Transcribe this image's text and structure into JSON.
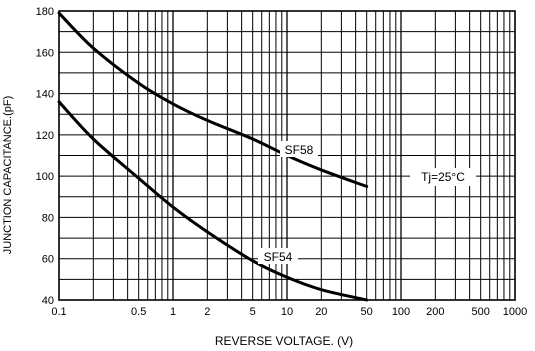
{
  "chart_data": {
    "type": "line",
    "xscale": "log",
    "xlim": [
      0.1,
      1000
    ],
    "ylim": [
      40,
      180
    ],
    "grid": true,
    "xlabel": "REVERSE VOLTAGE. (V)",
    "ylabel": "JUNCTION CAPACITANCE.(pF)",
    "x_ticks": [
      0.1,
      0.5,
      1,
      2,
      5,
      10,
      20,
      50,
      100,
      200,
      500,
      1000
    ],
    "x_tick_labels": [
      "0.1",
      "0.5",
      "1",
      "2",
      "5",
      "10",
      "20",
      "50",
      "100",
      "200",
      "500",
      "1000"
    ],
    "y_ticks": [
      40,
      60,
      80,
      100,
      120,
      140,
      160,
      180
    ],
    "y_tick_labels": [
      "40",
      "60",
      "80",
      "100",
      "120",
      "140",
      "160",
      "180"
    ],
    "annotation": "Tj=25°C",
    "series": [
      {
        "name": "SF58",
        "x": [
          0.1,
          0.2,
          0.5,
          1,
          2,
          5,
          10,
          20,
          50
        ],
        "y": [
          179,
          162,
          145,
          135,
          127,
          118,
          110,
          103,
          95
        ]
      },
      {
        "name": "SF54",
        "x": [
          0.1,
          0.2,
          0.5,
          1,
          2,
          5,
          10,
          20,
          50
        ],
        "y": [
          136,
          118,
          99,
          85,
          73,
          59,
          51,
          45,
          40
        ]
      }
    ]
  }
}
